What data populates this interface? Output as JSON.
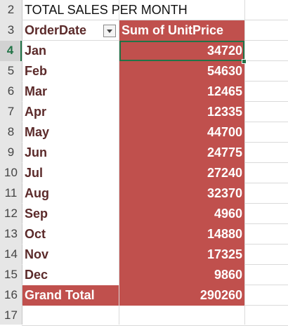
{
  "row_numbers": [
    "2",
    "3",
    "4",
    "5",
    "6",
    "7",
    "8",
    "9",
    "10",
    "11",
    "12",
    "13",
    "14",
    "15",
    "16",
    "17"
  ],
  "title": "TOTAL SALES PER MONTH",
  "pivot": {
    "row_header": "OrderDate",
    "value_header": "Sum of UnitPrice",
    "rows": [
      {
        "month": "Jan",
        "value": "34720"
      },
      {
        "month": "Feb",
        "value": "54630"
      },
      {
        "month": "Mar",
        "value": "12465"
      },
      {
        "month": "Apr",
        "value": "12335"
      },
      {
        "month": "May",
        "value": "44700"
      },
      {
        "month": "Jun",
        "value": "24775"
      },
      {
        "month": "Jul",
        "value": "27240"
      },
      {
        "month": "Aug",
        "value": "32370"
      },
      {
        "month": "Sep",
        "value": "4960"
      },
      {
        "month": "Oct",
        "value": "14880"
      },
      {
        "month": "Nov",
        "value": "17325"
      },
      {
        "month": "Dec",
        "value": "9860"
      }
    ],
    "grand_total_label": "Grand Total",
    "grand_total_value": "290260"
  },
  "colors": {
    "pivot_fill": "#c0504d",
    "label_text": "#5b2a2a",
    "selection": "#217346"
  },
  "icons": {
    "filter": "dropdown-arrow-icon"
  }
}
